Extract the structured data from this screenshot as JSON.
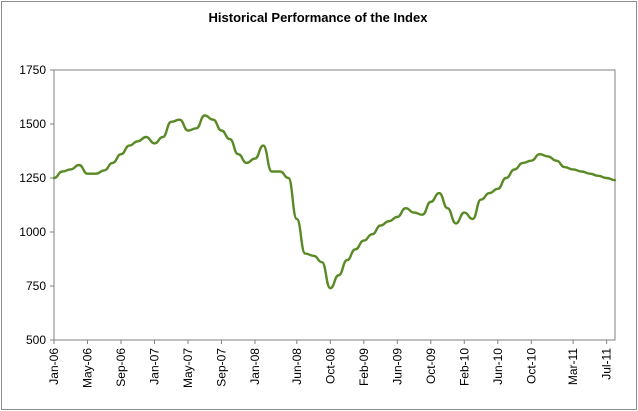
{
  "chart_data": {
    "type": "line",
    "title": "Historical Performance of the Index",
    "xlabel": "",
    "ylabel": "",
    "ylim": [
      500,
      1750
    ],
    "yticks": [
      500,
      750,
      1000,
      1250,
      1500,
      1750
    ],
    "xlim": [
      "2006-01",
      "2011-08"
    ],
    "xticks": [
      "Jan-06",
      "May-06",
      "Sep-06",
      "Jan-07",
      "May-07",
      "Sep-07",
      "Jan-08",
      "Jun-08",
      "Oct-08",
      "Feb-09",
      "Jun-09",
      "Oct-09",
      "Feb-10",
      "Jun-10",
      "Oct-10",
      "Mar-11",
      "Jul-11"
    ],
    "grid": false,
    "line_color": "#5a8a26",
    "series": [
      {
        "name": "",
        "x": [
          "2006-01",
          "2006-02",
          "2006-03",
          "2006-04",
          "2006-05",
          "2006-06",
          "2006-07",
          "2006-08",
          "2006-09",
          "2006-10",
          "2006-11",
          "2006-12",
          "2007-01",
          "2007-02",
          "2007-03",
          "2007-04",
          "2007-05",
          "2007-06",
          "2007-07",
          "2007-08",
          "2007-09",
          "2007-10",
          "2007-11",
          "2007-12",
          "2008-01",
          "2008-02",
          "2008-03",
          "2008-04",
          "2008-05",
          "2008-06",
          "2008-07",
          "2008-08",
          "2008-09",
          "2008-10",
          "2008-11",
          "2008-12",
          "2009-01",
          "2009-02",
          "2009-03",
          "2009-04",
          "2009-05",
          "2009-06",
          "2009-07",
          "2009-08",
          "2009-09",
          "2009-10",
          "2009-11",
          "2009-12",
          "2010-01",
          "2010-02",
          "2010-03",
          "2010-04",
          "2010-05",
          "2010-06",
          "2010-07",
          "2010-08",
          "2010-09",
          "2010-10",
          "2010-11",
          "2010-12",
          "2011-01",
          "2011-02",
          "2011-03",
          "2011-04",
          "2011-05",
          "2011-06",
          "2011-07",
          "2011-08"
        ],
        "values": [
          1250,
          1280,
          1290,
          1310,
          1270,
          1270,
          1285,
          1320,
          1360,
          1400,
          1420,
          1440,
          1410,
          1440,
          1510,
          1520,
          1470,
          1480,
          1540,
          1520,
          1470,
          1430,
          1360,
          1320,
          1340,
          1400,
          1280,
          1280,
          1250,
          1060,
          900,
          890,
          860,
          740,
          800,
          870,
          920,
          960,
          990,
          1030,
          1050,
          1070,
          1110,
          1090,
          1080,
          1140,
          1180,
          1110,
          1040,
          1090,
          1060,
          1150,
          1180,
          1200,
          1250,
          1290,
          1320,
          1330,
          1360,
          1350,
          1330,
          1300,
          1290,
          1280,
          1270,
          1260,
          1250,
          1240
        ],
        "values_are_estimates": true
      }
    ]
  }
}
